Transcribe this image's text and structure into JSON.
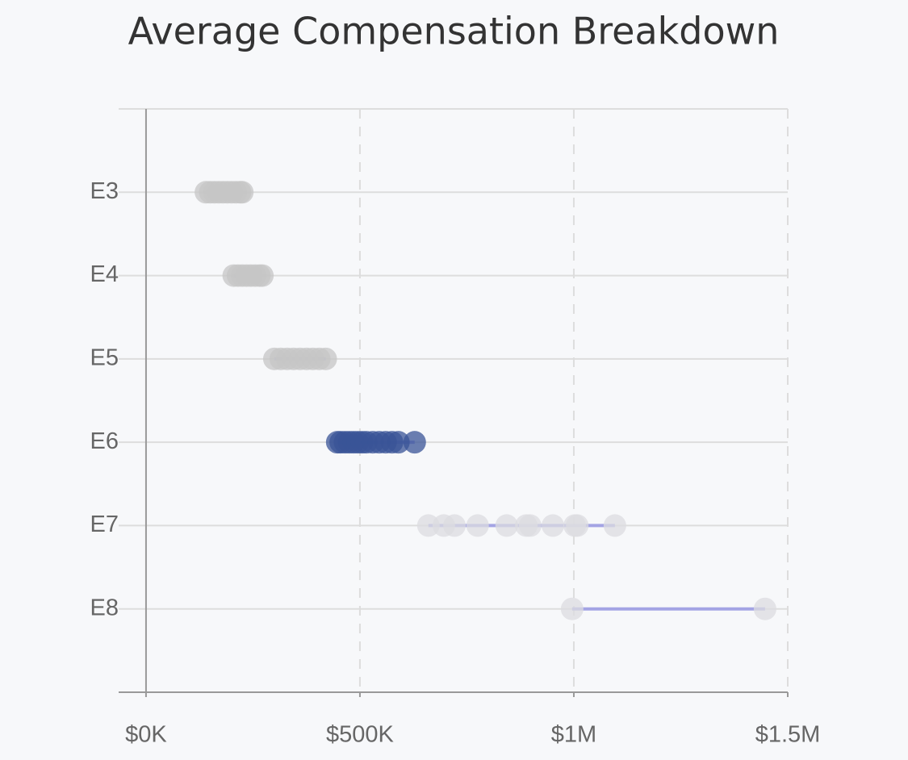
{
  "chart_data": {
    "type": "strip",
    "title": "Average Compensation Breakdown",
    "categories": [
      "E3",
      "E4",
      "E5",
      "E6",
      "E7",
      "E8"
    ],
    "values": [
      [
        140000,
        150000,
        160000,
        170000,
        180000,
        190000,
        200000,
        210000,
        220000,
        225000
      ],
      [
        205000,
        215000,
        225000,
        235000,
        245000,
        255000,
        265000,
        272000
      ],
      [
        300000,
        315000,
        330000,
        345000,
        360000,
        375000,
        390000,
        405000,
        420000
      ],
      [
        447000,
        455000,
        465000,
        475000,
        485000,
        495000,
        505000,
        515000,
        530000,
        545000,
        560000,
        575000,
        590000,
        628000
      ],
      [
        660000,
        696000,
        721000,
        775000,
        843000,
        889000,
        898000,
        951000,
        1002000,
        1008000,
        1096000
      ],
      [
        996000,
        1447000
      ]
    ],
    "colors": [
      "#c6c6c6",
      "#c6c6c6",
      "#c6c6c6",
      "#3a5497",
      "#dcdce0",
      "#dcdce0"
    ],
    "range_color": "#a4a4e4",
    "xlim": [
      -64000,
      1500000
    ],
    "xticks": [
      {
        "value": 0,
        "label": "$0K"
      },
      {
        "value": 500000,
        "label": "$500K"
      },
      {
        "value": 1000000,
        "label": "$1M"
      },
      {
        "value": 1500000,
        "label": "$1.5M"
      }
    ],
    "grid": true
  }
}
